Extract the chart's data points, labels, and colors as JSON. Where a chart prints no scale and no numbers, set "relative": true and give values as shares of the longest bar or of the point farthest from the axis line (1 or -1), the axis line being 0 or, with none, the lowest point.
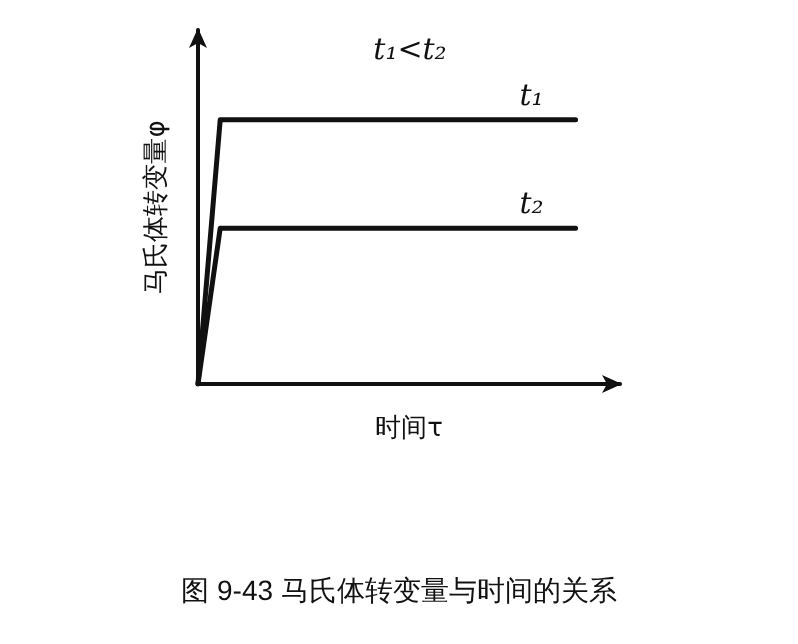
{
  "chart_data": {
    "type": "line",
    "relative": true,
    "title": "t₁<t₂",
    "xlabel": "时间τ",
    "ylabel": "马氏体转变量φ",
    "annotations": [
      "图 9-43 马氏体转变量与时间的关系"
    ],
    "categories": [
      null,
      null,
      null,
      null,
      null,
      null,
      null,
      null,
      null,
      null,
      null,
      null,
      null,
      null,
      null,
      null,
      null,
      null
    ],
    "series": [
      {
        "name": "t₁",
        "color": "#111111",
        "values": [
          0,
          1,
          1,
          1,
          1,
          1,
          1,
          1,
          1,
          1,
          1,
          1,
          1,
          1,
          1,
          1,
          1,
          1
        ]
      },
      {
        "name": "t₂",
        "color": "#111111",
        "values": [
          0,
          0.59,
          0.59,
          0.59,
          0.59,
          0.59,
          0.59,
          0.59,
          0.59,
          0.59,
          0.59,
          0.59,
          0.59,
          0.59,
          0.59,
          0.59,
          0.59,
          0.59
        ]
      }
    ],
    "grid": false,
    "legend": false,
    "marker": "none",
    "line_style": "solid"
  }
}
